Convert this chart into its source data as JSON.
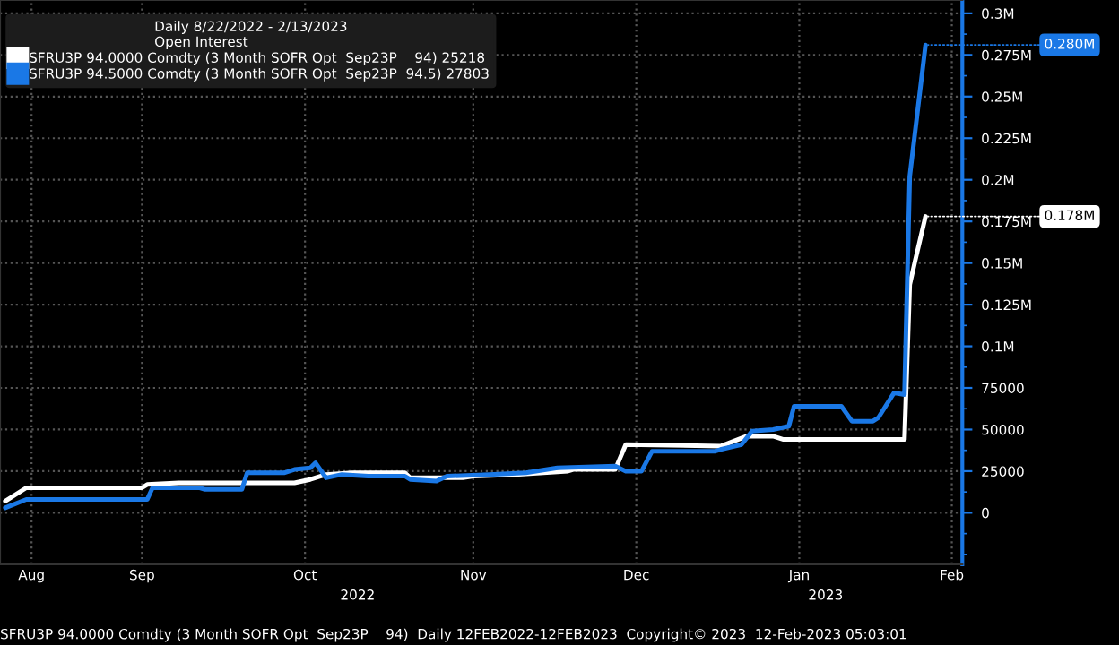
{
  "chart_data": {
    "type": "line",
    "title": "Daily 8/22/2022 - 2/13/2023",
    "legend_title": "Open Interest",
    "series": [
      {
        "name": "SFRU3P 94.0000 Comdty (3 Month SOFR Opt  Sep23P    94) 25218",
        "color": "#ffffff",
        "x": [
          "2022-08-22",
          "2022-08-26",
          "2022-09-17",
          "2022-09-18",
          "2022-09-24",
          "2022-10-16",
          "2022-10-19",
          "2022-10-22",
          "2022-10-27",
          "2022-11-06",
          "2022-11-07",
          "2022-11-17",
          "2022-11-19",
          "2022-11-27",
          "2022-12-07",
          "2022-12-08",
          "2022-12-16",
          "2022-12-18",
          "2023-01-05",
          "2023-01-10",
          "2023-01-15",
          "2023-01-17",
          "2023-02-09",
          "2023-02-10",
          "2023-02-11",
          "2023-02-13"
        ],
        "values": [
          7000,
          15000,
          15000,
          17000,
          18000,
          18000,
          20000,
          23000,
          24000,
          24000,
          21000,
          21000,
          22000,
          23000,
          25000,
          26000,
          26000,
          41000,
          40000,
          46000,
          46000,
          44000,
          44000,
          137000,
          151000,
          178000
        ]
      },
      {
        "name": "SFRU3P 94.5000 Comdty (3 Month SOFR Opt  Sep23P  94.5) 27803",
        "color": "#1a78e6",
        "x": [
          "2022-08-22",
          "2022-08-26",
          "2022-09-18",
          "2022-09-19",
          "2022-09-28",
          "2022-09-29",
          "2022-10-06",
          "2022-10-07",
          "2022-10-14",
          "2022-10-16",
          "2022-10-19",
          "2022-10-20",
          "2022-10-22",
          "2022-10-25",
          "2022-10-30",
          "2022-11-06",
          "2022-11-07",
          "2022-11-12",
          "2022-11-14",
          "2022-11-22",
          "2022-11-29",
          "2022-12-05",
          "2022-12-16",
          "2022-12-18",
          "2022-12-21",
          "2022-12-23",
          "2023-01-04",
          "2023-01-05",
          "2023-01-09",
          "2023-01-11",
          "2023-01-15",
          "2023-01-18",
          "2023-01-19",
          "2023-01-28",
          "2023-01-30",
          "2023-02-03",
          "2023-02-04",
          "2023-02-07",
          "2023-02-09",
          "2023-02-10",
          "2023-02-13"
        ],
        "values": [
          3000,
          8000,
          8000,
          15000,
          15000,
          14000,
          14000,
          24000,
          24000,
          26000,
          27000,
          30000,
          21000,
          23000,
          22000,
          22000,
          20000,
          19000,
          22000,
          23000,
          24000,
          27000,
          28000,
          25000,
          25000,
          37000,
          37000,
          38000,
          41000,
          49000,
          50000,
          52000,
          64000,
          64000,
          55000,
          55000,
          57000,
          72000,
          71000,
          202000,
          281000
        ]
      }
    ],
    "xlim": [
      "2022-08-21",
      "2023-02-20"
    ],
    "xticks": [
      {
        "value": "2022-08-27",
        "label": "Aug"
      },
      {
        "value": "2022-09-17",
        "label": "Sep"
      },
      {
        "value": "2022-10-18",
        "label": "Oct"
      },
      {
        "value": "2022-11-19",
        "label": "Nov"
      },
      {
        "value": "2022-12-20",
        "label": "Dec"
      },
      {
        "value": "2023-01-20",
        "label": "Jan"
      },
      {
        "value": "2023-02-18",
        "label": "Feb"
      }
    ],
    "x2lim": [
      "2022-08-21",
      "2023-02-20"
    ],
    "x2ticks": [
      {
        "value": "2022-10-28",
        "label": "2022"
      },
      {
        "value": "2023-01-25",
        "label": "2023"
      }
    ],
    "ylim": [
      -31000,
      308000
    ],
    "yticks": [
      0,
      25000,
      50000,
      75000,
      {
        "value": 100000,
        "label": "0.1M"
      },
      {
        "value": 125000,
        "label": "0.125M"
      },
      {
        "value": 150000,
        "label": "0.15M"
      },
      {
        "value": 175000,
        "label": "0.175M"
      },
      {
        "value": 200000,
        "label": "0.2M"
      },
      {
        "value": 225000,
        "label": "0.225M"
      },
      {
        "value": 250000,
        "label": "0.25M"
      },
      {
        "value": 275000,
        "label": "0.275M"
      },
      {
        "value": 300000,
        "label": "0.3M"
      }
    ],
    "annotations": [
      {
        "text": "0.280M",
        "x": "2023-02-13",
        "y": 281000
      },
      {
        "text": "0.178M",
        "x": "2023-02-13",
        "y": 178000
      },
      "SFRU3P 94.0000 Comdty (3 Month SOFR Opt  Sep23P    94)  Daily 12FEB2022-12FEB2023  Copyright© 2023  12-Feb-2023 05:03:01"
    ],
    "grid": true,
    "legend": "top left",
    "marker": "none",
    "line_style": "solid"
  }
}
